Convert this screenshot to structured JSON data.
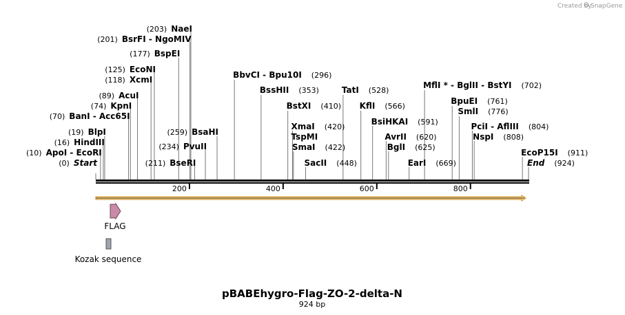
{
  "watermark": {
    "prefix": "Created by",
    "brand": "SnapGene"
  },
  "title": "pBABEhygro-Flag-ZO-2-delta-N",
  "subtitle": "924 bp",
  "sequence_length": 924,
  "axis_ticks": [
    {
      "position": 200,
      "label": "200"
    },
    {
      "position": 400,
      "label": "400"
    },
    {
      "position": 600,
      "label": "600"
    },
    {
      "position": 800,
      "label": "800"
    }
  ],
  "sites": [
    {
      "id": "start",
      "pos": 0,
      "text": "Start",
      "pos_label": "(0)",
      "italic": true
    },
    {
      "id": "apoi",
      "pos": 10,
      "text": "ApoI  - EcoRI",
      "pos_label": "(10)"
    },
    {
      "id": "hindiii",
      "pos": 16,
      "text": "HindIII",
      "pos_label": "(16)"
    },
    {
      "id": "blpi",
      "pos": 19,
      "text": "BlpI",
      "pos_label": "(19)"
    },
    {
      "id": "bani",
      "pos": 70,
      "text": "BanI  - Acc65I",
      "pos_label": "(70)"
    },
    {
      "id": "kpni",
      "pos": 74,
      "text": "KpnI",
      "pos_label": "(74)"
    },
    {
      "id": "acui",
      "pos": 89,
      "text": "AcuI",
      "pos_label": "(89)"
    },
    {
      "id": "xcmi",
      "pos": 118,
      "text": "XcmI",
      "pos_label": "(118)"
    },
    {
      "id": "econi",
      "pos": 125,
      "text": "EcoNI",
      "pos_label": "(125)"
    },
    {
      "id": "bspei",
      "pos": 177,
      "text": "BspEI",
      "pos_label": "(177)"
    },
    {
      "id": "bsrfi",
      "pos": 201,
      "text": "BsrFI  - NgoMIV",
      "pos_label": "(201)"
    },
    {
      "id": "naei",
      "pos": 203,
      "text": "NaeI",
      "pos_label": "(203)"
    },
    {
      "id": "bseri",
      "pos": 211,
      "text": "BseRI",
      "pos_label": "(211)"
    },
    {
      "id": "pvuii",
      "pos": 234,
      "text": "PvuII",
      "pos_label": "(234)"
    },
    {
      "id": "bsahi",
      "pos": 259,
      "text": "BsaHI",
      "pos_label": "(259)"
    },
    {
      "id": "bbvci",
      "pos": 296,
      "text": "BbvCI  - Bpu10I",
      "pos_label": "(296)"
    },
    {
      "id": "bsshii",
      "pos": 353,
      "text": "BssHII",
      "pos_label": "(353)"
    },
    {
      "id": "bstxi",
      "pos": 410,
      "text": "BstXI",
      "pos_label": "(410)"
    },
    {
      "id": "xmai",
      "pos": 420,
      "text": "XmaI",
      "pos_label": "(420)"
    },
    {
      "id": "tspmi",
      "pos": 420,
      "text": "TspMI",
      "pos_label": ""
    },
    {
      "id": "smai",
      "pos": 422,
      "text": "SmaI",
      "pos_label": "(422)"
    },
    {
      "id": "sacii",
      "pos": 448,
      "text": "SacII",
      "pos_label": "(448)"
    },
    {
      "id": "tati",
      "pos": 528,
      "text": "TatI",
      "pos_label": "(528)"
    },
    {
      "id": "kfli",
      "pos": 566,
      "text": "KflI",
      "pos_label": "(566)"
    },
    {
      "id": "bsihkai",
      "pos": 591,
      "text": "BsiHKAI",
      "pos_label": "(591)"
    },
    {
      "id": "avrii",
      "pos": 620,
      "text": "AvrII",
      "pos_label": "(620)"
    },
    {
      "id": "bgli",
      "pos": 625,
      "text": "BglI",
      "pos_label": "(625)"
    },
    {
      "id": "eari",
      "pos": 669,
      "text": "EarI",
      "pos_label": "(669)"
    },
    {
      "id": "mfli",
      "pos": 702,
      "text": "MflI *  - BglII  - BstYI",
      "pos_label": "(702)"
    },
    {
      "id": "bpuei",
      "pos": 761,
      "text": "BpuEI",
      "pos_label": "(761)"
    },
    {
      "id": "smli",
      "pos": 776,
      "text": "SmlI",
      "pos_label": "(776)"
    },
    {
      "id": "pcii",
      "pos": 804,
      "text": "PciI  - AflIII",
      "pos_label": "(804)"
    },
    {
      "id": "nspi",
      "pos": 808,
      "text": "NspI",
      "pos_label": "(808)"
    },
    {
      "id": "ecop15i",
      "pos": 911,
      "text": "EcoP15I",
      "pos_label": "(911)"
    },
    {
      "id": "end",
      "pos": 924,
      "text": "End",
      "pos_label": "(924)",
      "italic": true
    }
  ],
  "features": [
    {
      "id": "orf",
      "label": "",
      "start": 0,
      "end": 924,
      "color": "#f2a51f",
      "kind": "orf-arrow"
    },
    {
      "id": "flag",
      "label": "FLAG",
      "start": 32,
      "end": 56,
      "color": "#c98aa7",
      "kind": "arrow"
    },
    {
      "id": "kozak",
      "label": "Kozak sequence",
      "start": 22,
      "end": 32,
      "color": "#a0a4af",
      "kind": "box"
    }
  ],
  "colors": {
    "backbone": "#000000",
    "leader": "#777777",
    "orf_border": "#d48a10",
    "orf_fill": "#fbe4b4"
  }
}
